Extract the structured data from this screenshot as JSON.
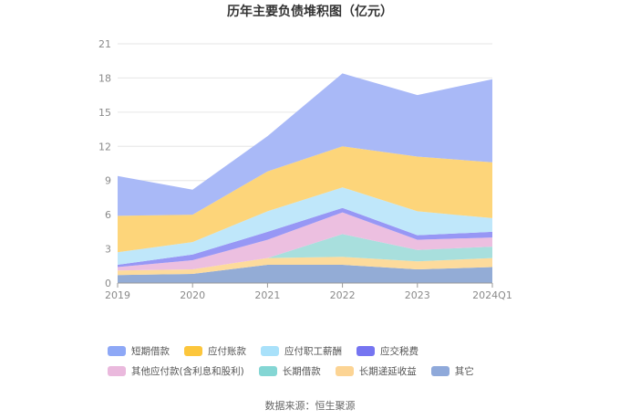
{
  "title": "历年主要负债堆积图（亿元）",
  "source": "数据来源：恒生聚源",
  "chart_data": {
    "type": "area",
    "stacked": true,
    "categories": [
      "2019",
      "2020",
      "2021",
      "2022",
      "2023",
      "2024Q1"
    ],
    "ylim": [
      0,
      21
    ],
    "yticks": [
      0,
      3,
      6,
      9,
      12,
      15,
      18,
      21
    ],
    "grid": true,
    "legend_position": "bottom",
    "series": [
      {
        "name": "其它",
        "color": "#93acd6",
        "values": [
          0.7,
          0.8,
          1.6,
          1.6,
          1.2,
          1.4
        ]
      },
      {
        "name": "长期递延收益",
        "color": "#fddb9c",
        "values": [
          0.4,
          0.4,
          0.6,
          0.7,
          0.7,
          0.8
        ]
      },
      {
        "name": "长期借款",
        "color": "#a8dfdd",
        "values": [
          0.0,
          0.0,
          0.0,
          2.0,
          1.0,
          1.0
        ]
      },
      {
        "name": "其他应付款(含利息和股利)",
        "color": "#ecbfe0",
        "values": [
          0.3,
          0.8,
          1.6,
          1.9,
          0.9,
          0.8
        ]
      },
      {
        "name": "应交税费",
        "color": "#9797f5",
        "values": [
          0.2,
          0.5,
          0.7,
          0.4,
          0.4,
          0.5
        ]
      },
      {
        "name": "应付职工薪酬",
        "color": "#bfe7fa",
        "values": [
          1.1,
          1.1,
          1.8,
          1.8,
          2.1,
          1.2
        ]
      },
      {
        "name": "应付账款",
        "color": "#fdd57a",
        "values": [
          3.2,
          2.4,
          3.5,
          3.6,
          4.8,
          4.9
        ]
      },
      {
        "name": "短期借款",
        "color": "#a9b9f7",
        "values": [
          3.5,
          2.2,
          3.1,
          6.4,
          5.4,
          7.3
        ]
      }
    ]
  },
  "legend_items": [
    {
      "name": "短期借款",
      "color": "#8ea8f6"
    },
    {
      "name": "应付账款",
      "color": "#fcc63c"
    },
    {
      "name": "应付职工薪酬",
      "color": "#a9e1fa"
    },
    {
      "name": "应交税费",
      "color": "#7675f1"
    },
    {
      "name": "其他应付款(含利息和股利)",
      "color": "#eab9dd"
    },
    {
      "name": "长期借款",
      "color": "#84d6d4"
    },
    {
      "name": "长期递延收益",
      "color": "#fcd494"
    },
    {
      "name": "其它",
      "color": "#8fa9da"
    }
  ]
}
